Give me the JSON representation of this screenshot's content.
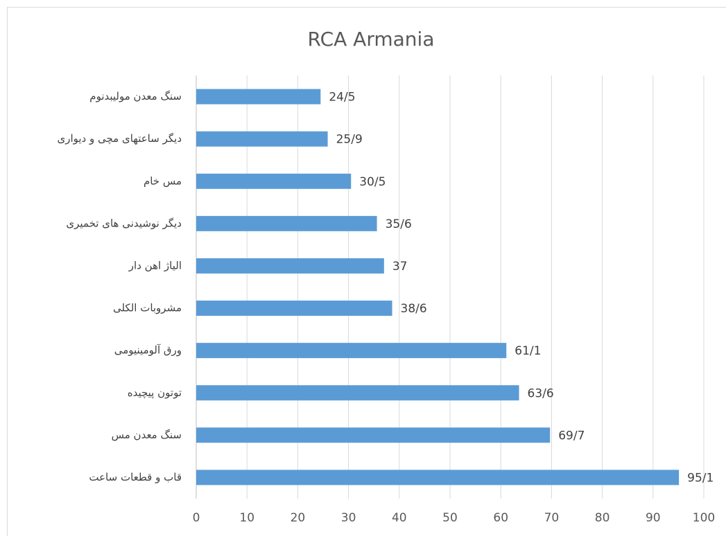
{
  "chart_data": {
    "type": "bar",
    "orientation": "horizontal",
    "title": "RCA Armania",
    "categories": [
      "سنگ معدن مولیبدنوم",
      "دیگر ساعتهای مچی و دیواری",
      "مس خام",
      "دیگر نوشیدنی های تخمیری",
      "الیاژ اهن دار",
      "مشروبات الکلی",
      "ورق آلومینیومی",
      "توتون پیچیده",
      "سنگ معدن مس",
      "قاب  و  قطعات ساعت"
    ],
    "values": [
      24.5,
      25.9,
      30.5,
      35.6,
      37,
      38.6,
      61.1,
      63.6,
      69.7,
      95.1
    ],
    "value_labels": [
      "24/5",
      "25/9",
      "30/5",
      "35/6",
      "37",
      "38/6",
      "61/1",
      "63/6",
      "69/7",
      "95/1"
    ],
    "color": "#5b9bd5",
    "xlim": [
      0,
      100
    ],
    "xticks": [
      0,
      10,
      20,
      30,
      40,
      50,
      60,
      70,
      80,
      90,
      100
    ],
    "grid": true
  }
}
